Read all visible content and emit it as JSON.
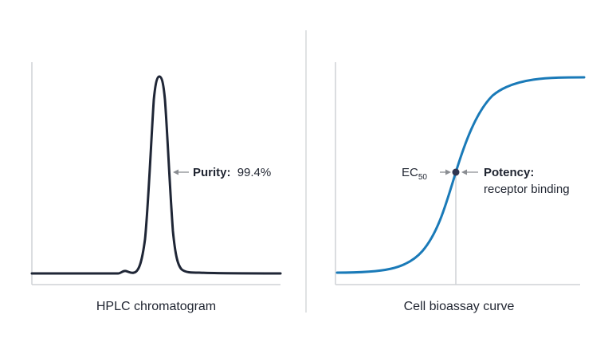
{
  "left_panel": {
    "caption": "HPLC chromatogram",
    "annotation_label": "Purity:",
    "annotation_value": "99.4%"
  },
  "right_panel": {
    "caption": "Cell bioassay curve",
    "ec_main": "EC",
    "ec_sub": "50",
    "annotation_title": "Potency:",
    "annotation_subtitle": "receptor binding"
  },
  "colors": {
    "chromatogram_line": "#1f2636",
    "sigmoid_line": "#1a7ab8",
    "ec50_point": "#2f3550",
    "axis": "#cfd2d6",
    "divider": "#d6d8db",
    "arrow": "#8a8d92",
    "text": "#1f2430"
  }
}
